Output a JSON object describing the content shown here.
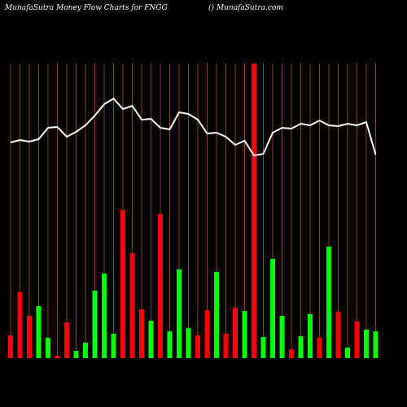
{
  "chart_data": {
    "type": "bar",
    "title": "MunafaSutra  Money Flow  Charts for FNGG",
    "subtitle": "() MunafaSutra.com",
    "categories": [
      null,
      null,
      null,
      null,
      null,
      null,
      null,
      null,
      null,
      null,
      null,
      null,
      null,
      null,
      null,
      null,
      null,
      null,
      null,
      null,
      null,
      null,
      null,
      null,
      null,
      null,
      null,
      null,
      null,
      null,
      null,
      null,
      null,
      null,
      null,
      null,
      null,
      null,
      null,
      null
    ],
    "values": [
      28,
      81,
      52,
      64,
      25,
      3,
      44,
      9,
      19,
      83,
      104,
      30,
      182,
      129,
      60,
      46,
      177,
      33,
      109,
      37,
      28,
      59,
      106,
      30,
      62,
      58,
      362,
      26,
      122,
      52,
      11,
      27,
      54,
      25,
      137,
      57,
      13,
      45,
      35,
      33
    ],
    "colors": [
      "#ff0000",
      "#ff0000",
      "#ff0000",
      "#00ff00",
      "#00ff00",
      "#ff0000",
      "#ff0000",
      "#00ff00",
      "#00ff00",
      "#00ff00",
      "#00ff00",
      "#00ff00",
      "#ff0000",
      "#ff0000",
      "#ff0000",
      "#00ff00",
      "#ff0000",
      "#00ff00",
      "#00ff00",
      "#00ff00",
      "#ff0000",
      "#ff0000",
      "#00ff00",
      "#ff0000",
      "#ff0000",
      "#00ff00",
      "#ff0000",
      "#00ff00",
      "#00ff00",
      "#00ff00",
      "#ff0000",
      "#00ff00",
      "#00ff00",
      "#ff0000",
      "#00ff00",
      "#ff0000",
      "#00ff00",
      "#ff0000",
      "#00ff00",
      "#00ff00"
    ],
    "line": {
      "color": "#ffffff",
      "values": [
        265,
        268,
        266,
        269,
        283,
        284,
        272,
        278,
        286,
        298,
        312,
        319,
        306,
        310,
        293,
        294,
        283,
        281,
        302,
        300,
        293,
        276,
        277,
        272,
        262,
        267,
        249,
        251,
        277,
        283,
        282,
        288,
        286,
        292,
        286,
        285,
        288,
        286,
        290,
        250
      ]
    },
    "ylim": [
      0,
      362
    ],
    "grid": true,
    "grid_color": "#8b4513"
  }
}
